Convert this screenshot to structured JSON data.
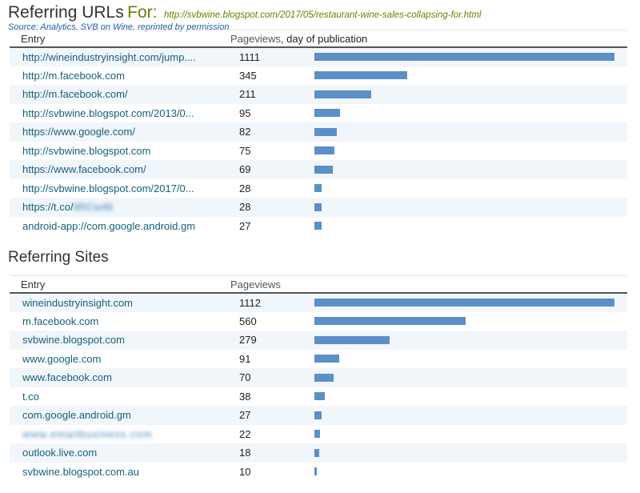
{
  "header": {
    "title": "Referring URLs",
    "for_label": "For:",
    "post_url": "http://svbwine.blogspot.com/2017/05/restaurant-wine-sales-collapsing-for.html",
    "source": "Source: Analytics, SVB on Wine, reprinted by permission"
  },
  "urls_table": {
    "col_entry": "Entry",
    "col_pageviews": "Pageviews",
    "col_pageviews_suffix": ", day of publication",
    "bar_color": "#5b8fc8",
    "rows": [
      {
        "entry": "http://wineindustryinsight.com/jump....",
        "pageviews": "1111",
        "value": 1111
      },
      {
        "entry": "http://m.facebook.com",
        "pageviews": "345",
        "value": 345
      },
      {
        "entry": "http://m.facebook.com/",
        "pageviews": "211",
        "value": 211
      },
      {
        "entry": "http://svbwine.blogspot.com/2013/0...",
        "pageviews": "95",
        "value": 95
      },
      {
        "entry": "https://www.google.com/",
        "pageviews": "82",
        "value": 82
      },
      {
        "entry": "http://svbwine.blogspot.com",
        "pageviews": "75",
        "value": 75
      },
      {
        "entry": "https://www.facebook.com/",
        "pageviews": "69",
        "value": 69
      },
      {
        "entry": "http://svbwine.blogspot.com/2017/0...",
        "pageviews": "28",
        "value": 28
      },
      {
        "entry": "https://t.co/",
        "entry_blurred": "8RCw4tl",
        "pageviews": "28",
        "value": 28
      },
      {
        "entry": "android-app://com.google.android.gm",
        "pageviews": "27",
        "value": 27
      }
    ]
  },
  "sites_section": {
    "title": "Referring Sites"
  },
  "sites_table": {
    "col_entry": "Entry",
    "col_pageviews": "Pageviews",
    "bar_color": "#5b8fc8",
    "rows": [
      {
        "entry": "wineindustryinsight.com",
        "pageviews": "1112",
        "value": 1112
      },
      {
        "entry": "m.facebook.com",
        "pageviews": "560",
        "value": 560
      },
      {
        "entry": "svbwine.blogspot.com",
        "pageviews": "279",
        "value": 279
      },
      {
        "entry": "www.google.com",
        "pageviews": "91",
        "value": 91
      },
      {
        "entry": "www.facebook.com",
        "pageviews": "70",
        "value": 70
      },
      {
        "entry": "t.co",
        "pageviews": "38",
        "value": 38
      },
      {
        "entry": "com.google.android.gm",
        "pageviews": "27",
        "value": 27
      },
      {
        "entry": "",
        "entry_blurred": "www.emailbusiness.com",
        "pageviews": "22",
        "value": 22
      },
      {
        "entry": "outlook.live.com",
        "pageviews": "18",
        "value": 18
      },
      {
        "entry": "svbwine.blogspot.com.au",
        "pageviews": "10",
        "value": 10
      }
    ]
  }
}
